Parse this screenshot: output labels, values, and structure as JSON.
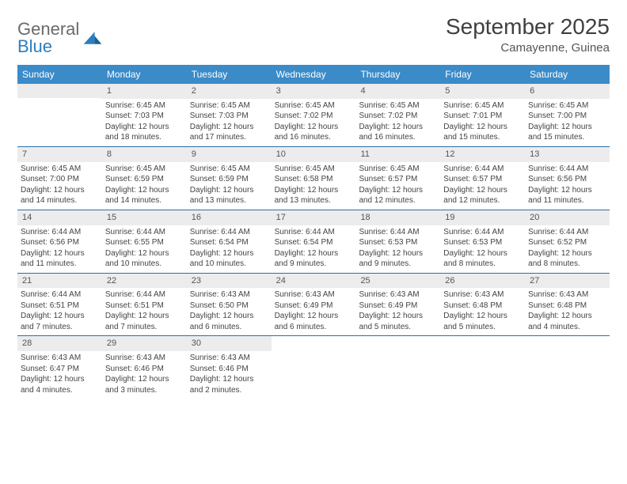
{
  "logo": {
    "general": "General",
    "blue": "Blue"
  },
  "title": "September 2025",
  "location": "Camayenne, Guinea",
  "colors": {
    "header_bg": "#3b8bc9",
    "header_text": "#ffffff",
    "daynum_bg": "#ececec",
    "week_border": "#2a6fa8",
    "logo_gray": "#6a6a6a",
    "logo_blue": "#2a7fbf"
  },
  "day_labels": [
    "Sunday",
    "Monday",
    "Tuesday",
    "Wednesday",
    "Thursday",
    "Friday",
    "Saturday"
  ],
  "weeks": [
    [
      null,
      {
        "n": "1",
        "sr": "Sunrise: 6:45 AM",
        "ss": "Sunset: 7:03 PM",
        "d1": "Daylight: 12 hours",
        "d2": "and 18 minutes."
      },
      {
        "n": "2",
        "sr": "Sunrise: 6:45 AM",
        "ss": "Sunset: 7:03 PM",
        "d1": "Daylight: 12 hours",
        "d2": "and 17 minutes."
      },
      {
        "n": "3",
        "sr": "Sunrise: 6:45 AM",
        "ss": "Sunset: 7:02 PM",
        "d1": "Daylight: 12 hours",
        "d2": "and 16 minutes."
      },
      {
        "n": "4",
        "sr": "Sunrise: 6:45 AM",
        "ss": "Sunset: 7:02 PM",
        "d1": "Daylight: 12 hours",
        "d2": "and 16 minutes."
      },
      {
        "n": "5",
        "sr": "Sunrise: 6:45 AM",
        "ss": "Sunset: 7:01 PM",
        "d1": "Daylight: 12 hours",
        "d2": "and 15 minutes."
      },
      {
        "n": "6",
        "sr": "Sunrise: 6:45 AM",
        "ss": "Sunset: 7:00 PM",
        "d1": "Daylight: 12 hours",
        "d2": "and 15 minutes."
      }
    ],
    [
      {
        "n": "7",
        "sr": "Sunrise: 6:45 AM",
        "ss": "Sunset: 7:00 PM",
        "d1": "Daylight: 12 hours",
        "d2": "and 14 minutes."
      },
      {
        "n": "8",
        "sr": "Sunrise: 6:45 AM",
        "ss": "Sunset: 6:59 PM",
        "d1": "Daylight: 12 hours",
        "d2": "and 14 minutes."
      },
      {
        "n": "9",
        "sr": "Sunrise: 6:45 AM",
        "ss": "Sunset: 6:59 PM",
        "d1": "Daylight: 12 hours",
        "d2": "and 13 minutes."
      },
      {
        "n": "10",
        "sr": "Sunrise: 6:45 AM",
        "ss": "Sunset: 6:58 PM",
        "d1": "Daylight: 12 hours",
        "d2": "and 13 minutes."
      },
      {
        "n": "11",
        "sr": "Sunrise: 6:45 AM",
        "ss": "Sunset: 6:57 PM",
        "d1": "Daylight: 12 hours",
        "d2": "and 12 minutes."
      },
      {
        "n": "12",
        "sr": "Sunrise: 6:44 AM",
        "ss": "Sunset: 6:57 PM",
        "d1": "Daylight: 12 hours",
        "d2": "and 12 minutes."
      },
      {
        "n": "13",
        "sr": "Sunrise: 6:44 AM",
        "ss": "Sunset: 6:56 PM",
        "d1": "Daylight: 12 hours",
        "d2": "and 11 minutes."
      }
    ],
    [
      {
        "n": "14",
        "sr": "Sunrise: 6:44 AM",
        "ss": "Sunset: 6:56 PM",
        "d1": "Daylight: 12 hours",
        "d2": "and 11 minutes."
      },
      {
        "n": "15",
        "sr": "Sunrise: 6:44 AM",
        "ss": "Sunset: 6:55 PM",
        "d1": "Daylight: 12 hours",
        "d2": "and 10 minutes."
      },
      {
        "n": "16",
        "sr": "Sunrise: 6:44 AM",
        "ss": "Sunset: 6:54 PM",
        "d1": "Daylight: 12 hours",
        "d2": "and 10 minutes."
      },
      {
        "n": "17",
        "sr": "Sunrise: 6:44 AM",
        "ss": "Sunset: 6:54 PM",
        "d1": "Daylight: 12 hours",
        "d2": "and 9 minutes."
      },
      {
        "n": "18",
        "sr": "Sunrise: 6:44 AM",
        "ss": "Sunset: 6:53 PM",
        "d1": "Daylight: 12 hours",
        "d2": "and 9 minutes."
      },
      {
        "n": "19",
        "sr": "Sunrise: 6:44 AM",
        "ss": "Sunset: 6:53 PM",
        "d1": "Daylight: 12 hours",
        "d2": "and 8 minutes."
      },
      {
        "n": "20",
        "sr": "Sunrise: 6:44 AM",
        "ss": "Sunset: 6:52 PM",
        "d1": "Daylight: 12 hours",
        "d2": "and 8 minutes."
      }
    ],
    [
      {
        "n": "21",
        "sr": "Sunrise: 6:44 AM",
        "ss": "Sunset: 6:51 PM",
        "d1": "Daylight: 12 hours",
        "d2": "and 7 minutes."
      },
      {
        "n": "22",
        "sr": "Sunrise: 6:44 AM",
        "ss": "Sunset: 6:51 PM",
        "d1": "Daylight: 12 hours",
        "d2": "and 7 minutes."
      },
      {
        "n": "23",
        "sr": "Sunrise: 6:43 AM",
        "ss": "Sunset: 6:50 PM",
        "d1": "Daylight: 12 hours",
        "d2": "and 6 minutes."
      },
      {
        "n": "24",
        "sr": "Sunrise: 6:43 AM",
        "ss": "Sunset: 6:49 PM",
        "d1": "Daylight: 12 hours",
        "d2": "and 6 minutes."
      },
      {
        "n": "25",
        "sr": "Sunrise: 6:43 AM",
        "ss": "Sunset: 6:49 PM",
        "d1": "Daylight: 12 hours",
        "d2": "and 5 minutes."
      },
      {
        "n": "26",
        "sr": "Sunrise: 6:43 AM",
        "ss": "Sunset: 6:48 PM",
        "d1": "Daylight: 12 hours",
        "d2": "and 5 minutes."
      },
      {
        "n": "27",
        "sr": "Sunrise: 6:43 AM",
        "ss": "Sunset: 6:48 PM",
        "d1": "Daylight: 12 hours",
        "d2": "and 4 minutes."
      }
    ],
    [
      {
        "n": "28",
        "sr": "Sunrise: 6:43 AM",
        "ss": "Sunset: 6:47 PM",
        "d1": "Daylight: 12 hours",
        "d2": "and 4 minutes."
      },
      {
        "n": "29",
        "sr": "Sunrise: 6:43 AM",
        "ss": "Sunset: 6:46 PM",
        "d1": "Daylight: 12 hours",
        "d2": "and 3 minutes."
      },
      {
        "n": "30",
        "sr": "Sunrise: 6:43 AM",
        "ss": "Sunset: 6:46 PM",
        "d1": "Daylight: 12 hours",
        "d2": "and 2 minutes."
      },
      null,
      null,
      null,
      null
    ]
  ]
}
